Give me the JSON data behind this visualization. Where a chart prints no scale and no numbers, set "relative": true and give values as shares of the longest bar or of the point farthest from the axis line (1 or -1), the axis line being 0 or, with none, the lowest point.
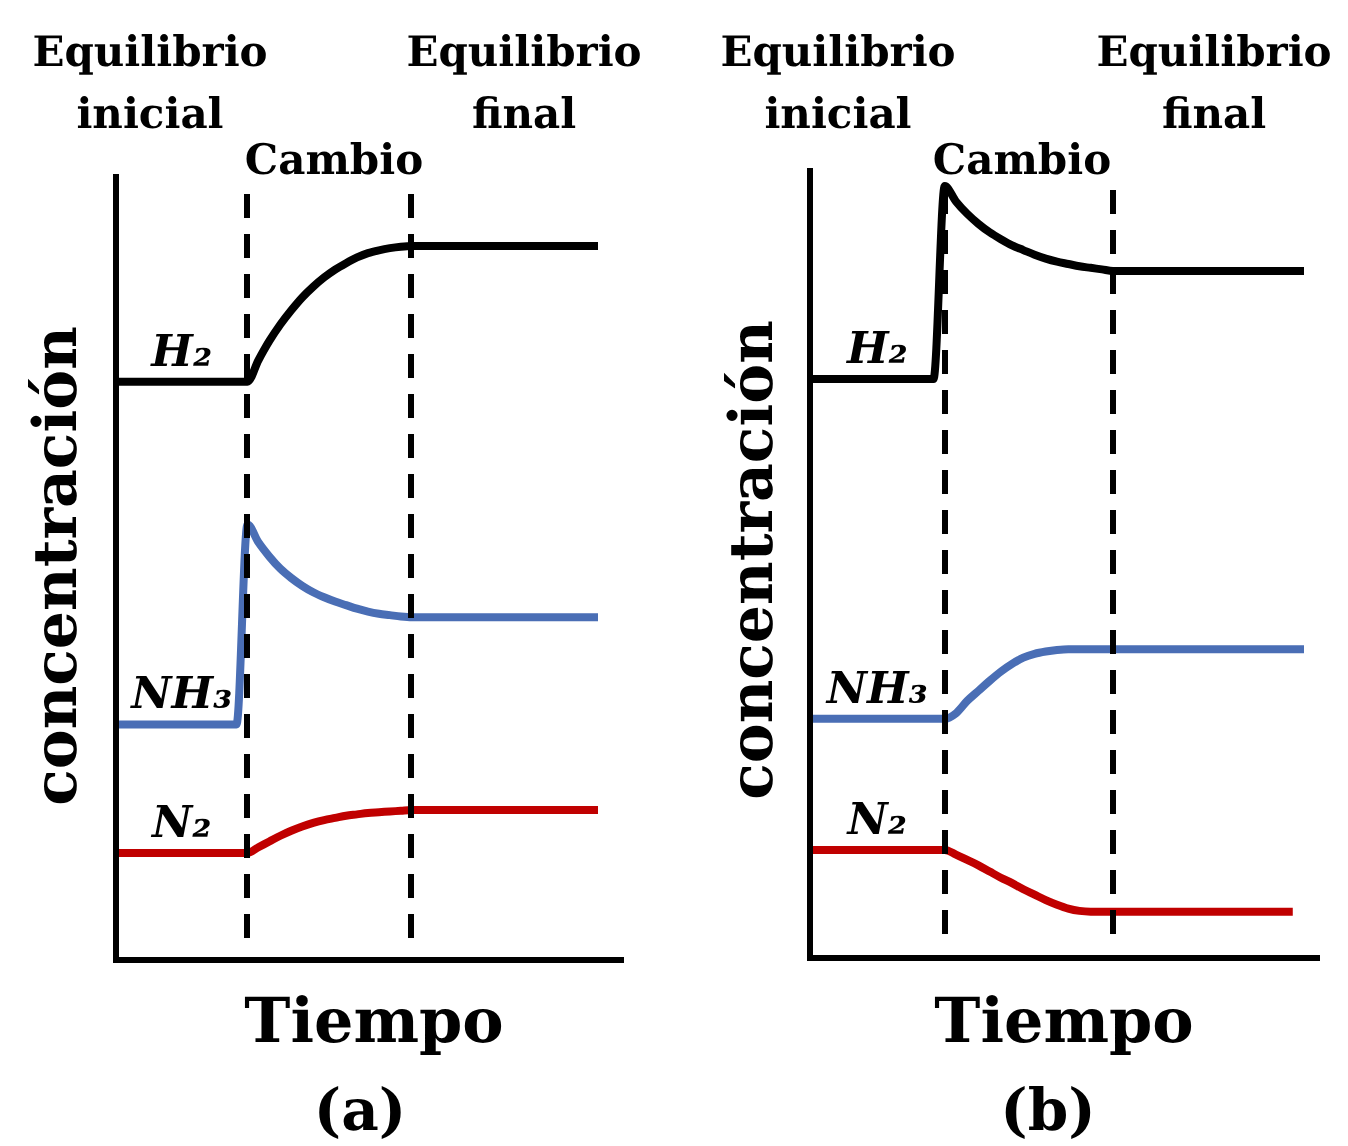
{
  "chart_data": [
    {
      "type": "line",
      "title": "(a)",
      "xlabel": "Tiempo",
      "ylabel": "concentración",
      "annotations": [
        "Equilibrio inicial",
        "Cambio",
        "Equilibrio final"
      ],
      "categories": [
        null,
        null,
        null,
        null,
        null,
        null,
        null,
        null,
        null,
        null,
        null,
        null,
        null,
        null,
        null,
        null,
        null,
        null,
        null,
        null,
        null,
        null,
        null,
        null,
        null,
        null,
        null,
        null,
        null,
        null,
        null,
        null,
        null,
        null,
        null,
        null,
        null,
        null,
        null,
        null,
        null,
        null,
        null,
        null,
        null
      ],
      "relative": true,
      "series": [
        {
          "name": "H₂",
          "color": "#000000",
          "values": [
            0.81,
            0.81,
            0.81,
            0.81,
            0.81,
            0.81,
            0.81,
            0.81,
            0.81,
            0.81,
            0.81,
            0.81,
            0.81,
            0.84,
            0.867,
            0.89,
            0.91,
            0.928,
            0.943,
            0.956,
            0.967,
            0.976,
            0.984,
            0.99,
            0.994,
            0.997,
            0.999,
            1,
            1,
            1,
            1,
            1,
            1,
            1,
            1,
            1,
            1,
            1,
            1,
            1,
            1,
            1,
            1,
            1,
            1
          ]
        },
        {
          "name": "NH₃",
          "color": "#4a6eb5",
          "values": [
            0.33,
            0.33,
            0.33,
            0.33,
            0.33,
            0.33,
            0.33,
            0.33,
            0.33,
            0.33,
            0.33,
            0.33,
            0.61,
            0.585,
            0.565,
            0.548,
            0.535,
            0.524,
            0.515,
            0.508,
            0.502,
            0.497,
            0.492,
            0.488,
            0.485,
            0.483,
            0.481,
            0.48,
            0.48,
            0.48,
            0.48,
            0.48,
            0.48,
            0.48,
            0.48,
            0.48,
            0.48,
            0.48,
            0.48,
            0.48,
            0.48,
            0.48,
            0.48,
            0.48,
            0.48
          ]
        },
        {
          "name": "N₂",
          "color": "#c00000",
          "values": [
            0.15,
            0.15,
            0.15,
            0.15,
            0.15,
            0.15,
            0.15,
            0.15,
            0.15,
            0.15,
            0.15,
            0.15,
            0.15,
            0.158,
            0.166,
            0.174,
            0.181,
            0.187,
            0.192,
            0.196,
            0.199,
            0.202,
            0.204,
            0.206,
            0.207,
            0.208,
            0.209,
            0.21,
            0.21,
            0.21,
            0.21,
            0.21,
            0.21,
            0.21,
            0.21,
            0.21,
            0.21,
            0.21,
            0.21,
            0.21,
            0.21,
            0.21,
            0.21,
            0.21,
            0.21
          ]
        }
      ]
    },
    {
      "type": "line",
      "title": "(b)",
      "xlabel": "Tiempo",
      "ylabel": "concentración",
      "annotations": [
        "Equilibrio inicial",
        "Cambio",
        "Equilibrio final"
      ],
      "categories": [
        null,
        null,
        null,
        null,
        null,
        null,
        null,
        null,
        null,
        null,
        null,
        null,
        null,
        null,
        null,
        null,
        null,
        null,
        null,
        null,
        null,
        null,
        null,
        null,
        null,
        null,
        null,
        null,
        null,
        null,
        null,
        null,
        null,
        null,
        null,
        null,
        null,
        null,
        null,
        null,
        null,
        null,
        null,
        null,
        null
      ],
      "relative": true,
      "series": [
        {
          "name": "H₂",
          "color": "#000000",
          "values": [
            0.75,
            0.75,
            0.75,
            0.75,
            0.75,
            0.75,
            0.75,
            0.75,
            0.75,
            0.75,
            0.75,
            0.75,
            1,
            0.98,
            0.964,
            0.951,
            0.94,
            0.931,
            0.923,
            0.917,
            0.911,
            0.906,
            0.902,
            0.899,
            0.896,
            0.894,
            0.892,
            0.89,
            0.89,
            0.89,
            0.89,
            0.89,
            0.89,
            0.89,
            0.89,
            0.89,
            0.89,
            0.89,
            0.89,
            0.89,
            0.89,
            0.89,
            0.89,
            0.89,
            0.89
          ]
        },
        {
          "name": "NH₃",
          "color": "#4a6eb5",
          "values": [
            0.31,
            0.31,
            0.31,
            0.31,
            0.31,
            0.31,
            0.31,
            0.31,
            0.31,
            0.31,
            0.31,
            0.31,
            0.31,
            0.317,
            0.333,
            0.346,
            0.359,
            0.371,
            0.381,
            0.389,
            0.394,
            0.397,
            0.399,
            0.4,
            0.4,
            0.4,
            0.4,
            0.4,
            0.4,
            0.4,
            0.4,
            0.4,
            0.4,
            0.4,
            0.4,
            0.4,
            0.4,
            0.4,
            0.4,
            0.4,
            0.4,
            0.4,
            0.4,
            0.4,
            0.4
          ]
        },
        {
          "name": "N₂",
          "color": "#c00000",
          "values": [
            0.14,
            0.14,
            0.14,
            0.14,
            0.14,
            0.14,
            0.14,
            0.14,
            0.14,
            0.14,
            0.14,
            0.14,
            0.14,
            0.134,
            0.127,
            0.12,
            0.112,
            0.104,
            0.097,
            0.089,
            0.082,
            0.075,
            0.069,
            0.064,
            0.061,
            0.06,
            0.06,
            0.06,
            0.06,
            0.06,
            0.06,
            0.06,
            0.06,
            0.06,
            0.06,
            0.06,
            0.06,
            0.06,
            0.06,
            0.06,
            0.06,
            0.06,
            0.06,
            0.06,
            null
          ]
        }
      ]
    }
  ]
}
